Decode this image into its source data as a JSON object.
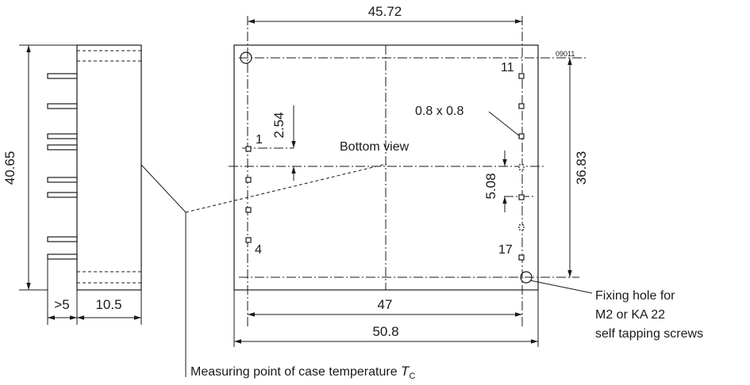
{
  "side_view": {
    "height_dim": "40.65",
    "pin_length_dim": ">5",
    "body_width_dim": "10.5"
  },
  "bottom_view": {
    "label": "Bottom view",
    "top_width_dim": "45.72",
    "height_dim": "36.83",
    "pin_pitch_dim": "2.54",
    "pin_gap_dim": "5.08",
    "pad_size": "0.8 x 0.8",
    "inner_width_dim": "47",
    "outer_width_dim": "50.8",
    "pin_label_1": "1",
    "pin_label_4": "4",
    "pin_label_11": "11",
    "pin_label_17": "17",
    "drawing_id": "09011"
  },
  "callouts": {
    "fixing_hole_line1": "Fixing hole for",
    "fixing_hole_line2": "M2 or KA 22",
    "fixing_hole_line3": "self tapping screws",
    "measuring_point": "Measuring point of case temperature",
    "temp_symbol": "T",
    "temp_subscript": "C"
  }
}
